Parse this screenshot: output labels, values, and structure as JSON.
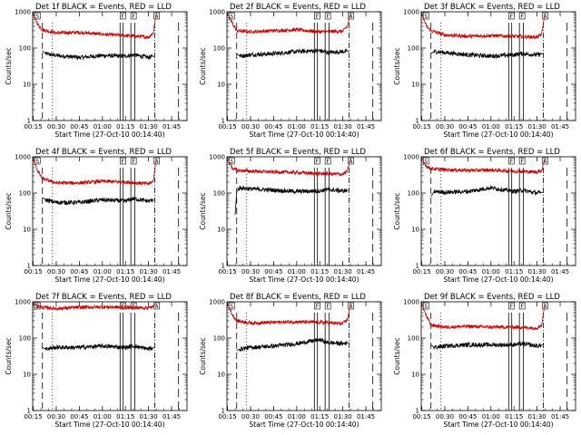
{
  "colors": {
    "events": "#000000",
    "lld": "#d00000",
    "axes": "#000000",
    "background": "#ffffff"
  },
  "chart_data": {
    "type": "line",
    "y_scale": "log",
    "ylim": [
      1,
      1000
    ],
    "y_ticks": [
      "1",
      "10",
      "100",
      "1000"
    ],
    "x_ticks": [
      "00:15",
      "00:30",
      "00:45",
      "01:00",
      "01:15",
      "01:30",
      "01:45"
    ],
    "x_range": [
      "00:14:40",
      "01:55:00"
    ],
    "xlabel": "Start Time (27-Oct-10 00:14:40)",
    "ylabel": "Counts/sec",
    "markers": {
      "dashed": [
        "00:21:00"
      ],
      "dotted": [
        "00:27:30"
      ],
      "solid": [
        "01:11:30",
        "01:13:30",
        "01:18:30",
        "01:21:00"
      ],
      "dash_dot": [
        "01:34:00"
      ],
      "long_dash": [
        "01:49:30"
      ]
    },
    "flags": [
      "S",
      "F",
      "F",
      "A"
    ],
    "panels": [
      {
        "title": "Det 1f BLACK = Events, RED = LLD",
        "series": [
          {
            "name": "Events",
            "color": "#000000",
            "x": [
              "00:21",
              "00:23",
              "00:30",
              "00:45",
              "01:00",
              "01:15",
              "01:20",
              "01:30",
              "01:34"
            ],
            "values": [
              85,
              70,
              62,
              55,
              62,
              60,
              65,
              55,
              60
            ]
          },
          {
            "name": "LLD",
            "color": "#d00000",
            "x": [
              "00:15",
              "00:18",
              "00:21",
              "00:30",
              "00:45",
              "01:00",
              "01:15",
              "01:30",
              "01:33",
              "01:35"
            ],
            "values": [
              900,
              450,
              320,
              260,
              270,
              240,
              220,
              200,
              260,
              900
            ]
          }
        ]
      },
      {
        "title": "Det 2f BLACK = Events, RED = LLD",
        "series": [
          {
            "name": "Events",
            "color": "#000000",
            "x": [
              "00:21",
              "00:23",
              "00:30",
              "00:45",
              "01:00",
              "01:15",
              "01:20",
              "01:30",
              "01:34"
            ],
            "values": [
              70,
              60,
              65,
              70,
              80,
              85,
              75,
              80,
              82
            ]
          },
          {
            "name": "LLD",
            "color": "#d00000",
            "x": [
              "00:15",
              "00:18",
              "00:21",
              "00:30",
              "00:45",
              "01:00",
              "01:15",
              "01:30",
              "01:33",
              "01:35"
            ],
            "values": [
              900,
              500,
              300,
              280,
              300,
              320,
              280,
              290,
              400,
              900
            ]
          }
        ]
      },
      {
        "title": "Det 3f BLACK = Events, RED = LLD",
        "series": [
          {
            "name": "Events",
            "color": "#000000",
            "x": [
              "00:21",
              "00:23",
              "00:30",
              "00:45",
              "01:00",
              "01:15",
              "01:20",
              "01:30",
              "01:34"
            ],
            "values": [
              70,
              80,
              75,
              65,
              60,
              65,
              70,
              65,
              70
            ]
          },
          {
            "name": "LLD",
            "color": "#d00000",
            "x": [
              "00:15",
              "00:18",
              "00:21",
              "00:30",
              "00:45",
              "01:00",
              "01:15",
              "01:30",
              "01:33",
              "01:35"
            ],
            "values": [
              900,
              400,
              300,
              230,
              210,
              220,
              210,
              200,
              240,
              900
            ]
          }
        ]
      },
      {
        "title": "Det 4f BLACK = Events, RED = LLD",
        "series": [
          {
            "name": "Events",
            "color": "#000000",
            "x": [
              "00:21",
              "00:23",
              "00:30",
              "00:45",
              "01:00",
              "01:15",
              "01:20",
              "01:30",
              "01:34"
            ],
            "values": [
              75,
              65,
              55,
              55,
              65,
              60,
              70,
              60,
              65
            ]
          },
          {
            "name": "LLD",
            "color": "#d00000",
            "x": [
              "00:15",
              "00:18",
              "00:21",
              "00:30",
              "00:45",
              "01:00",
              "01:15",
              "01:30",
              "01:33",
              "01:35"
            ],
            "values": [
              900,
              400,
              250,
              190,
              190,
              210,
              200,
              180,
              210,
              900
            ]
          }
        ]
      },
      {
        "title": "Det 5f BLACK = Events, RED = LLD",
        "series": [
          {
            "name": "Events",
            "color": "#000000",
            "x": [
              "00:20",
              "00:21",
              "00:23",
              "00:30",
              "00:45",
              "01:00",
              "01:15",
              "01:20",
              "01:30",
              "01:34"
            ],
            "values": [
              25,
              110,
              140,
              130,
              120,
              110,
              115,
              125,
              115,
              120
            ]
          },
          {
            "name": "LLD",
            "color": "#d00000",
            "x": [
              "00:15",
              "00:18",
              "00:21",
              "00:30",
              "00:45",
              "01:00",
              "01:15",
              "01:30",
              "01:33",
              "01:35"
            ],
            "values": [
              900,
              500,
              420,
              400,
              380,
              370,
              340,
              330,
              400,
              900
            ]
          }
        ]
      },
      {
        "title": "Det 6f BLACK = Events, RED = LLD",
        "series": [
          {
            "name": "Events",
            "color": "#000000",
            "x": [
              "00:21",
              "00:23",
              "00:30",
              "00:45",
              "01:00",
              "01:15",
              "01:20",
              "01:30",
              "01:34"
            ],
            "values": [
              80,
              110,
              105,
              110,
              140,
              110,
              120,
              100,
              105
            ]
          },
          {
            "name": "LLD",
            "color": "#d00000",
            "x": [
              "00:15",
              "00:18",
              "00:21",
              "00:30",
              "00:45",
              "01:00",
              "01:15",
              "01:30",
              "01:33",
              "01:35"
            ],
            "values": [
              900,
              550,
              470,
              440,
              420,
              430,
              400,
              380,
              420,
              900
            ]
          }
        ]
      },
      {
        "title": "Det 7f BLACK = Events, RED = LLD",
        "series": [
          {
            "name": "Events",
            "color": "#000000",
            "x": [
              "00:21",
              "00:23",
              "00:30",
              "00:45",
              "01:00",
              "01:15",
              "01:20",
              "01:30",
              "01:34"
            ],
            "values": [
              55,
              50,
              55,
              55,
              60,
              55,
              60,
              50,
              55
            ]
          },
          {
            "name": "LLD",
            "color": "#d00000",
            "x": [
              "00:15",
              "00:18",
              "00:21",
              "00:30",
              "00:45",
              "01:00",
              "01:15",
              "01:30",
              "01:33",
              "01:35"
            ],
            "values": [
              900,
              750,
              700,
              650,
              700,
              720,
              700,
              680,
              720,
              900
            ]
          }
        ]
      },
      {
        "title": "Det 8f BLACK = Events, RED = LLD",
        "series": [
          {
            "name": "Events",
            "color": "#000000",
            "x": [
              "00:21",
              "00:23",
              "00:30",
              "00:45",
              "01:00",
              "01:15",
              "01:20",
              "01:30",
              "01:34"
            ],
            "values": [
              45,
              50,
              55,
              60,
              70,
              90,
              75,
              70,
              75
            ]
          },
          {
            "name": "LLD",
            "color": "#d00000",
            "x": [
              "00:15",
              "00:18",
              "00:21",
              "00:30",
              "00:45",
              "01:00",
              "01:15",
              "01:30",
              "01:33",
              "01:35"
            ],
            "values": [
              900,
              450,
              300,
              260,
              270,
              280,
              270,
              250,
              320,
              900
            ]
          }
        ]
      },
      {
        "title": "Det 9f BLACK = Events, RED = LLD",
        "series": [
          {
            "name": "Events",
            "color": "#000000",
            "x": [
              "00:21",
              "00:23",
              "00:30",
              "00:45",
              "01:00",
              "01:15",
              "01:20",
              "01:30",
              "01:34"
            ],
            "values": [
              65,
              55,
              60,
              65,
              65,
              65,
              70,
              60,
              65
            ]
          },
          {
            "name": "LLD",
            "color": "#d00000",
            "x": [
              "00:15",
              "00:18",
              "00:21",
              "00:30",
              "00:45",
              "01:00",
              "01:15",
              "01:30",
              "01:33",
              "01:35"
            ],
            "values": [
              900,
              400,
              230,
              200,
              210,
              200,
              200,
              190,
              230,
              900
            ]
          }
        ]
      }
    ]
  }
}
